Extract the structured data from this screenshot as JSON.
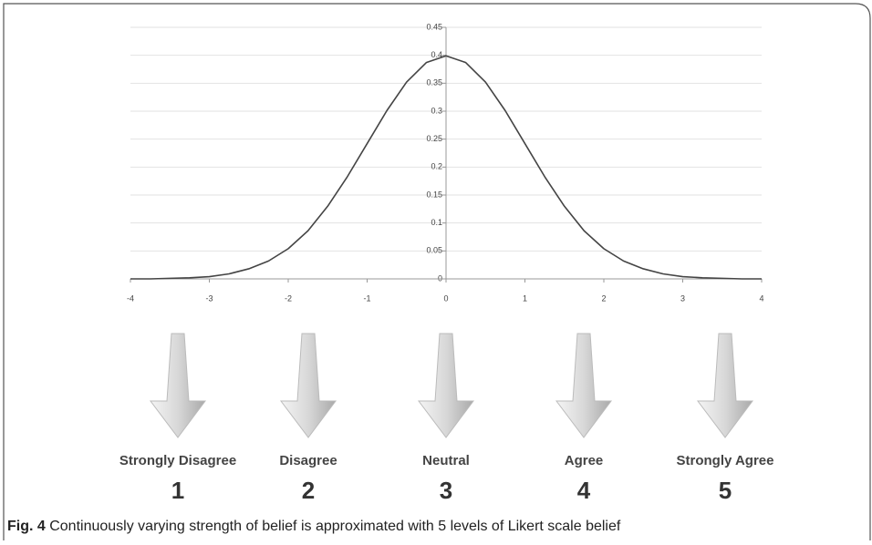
{
  "chart_data": {
    "type": "line",
    "x": [
      -4,
      -3.75,
      -3.5,
      -3.25,
      -3,
      -2.75,
      -2.5,
      -2.25,
      -2,
      -1.75,
      -1.5,
      -1.25,
      -1,
      -0.75,
      -0.5,
      -0.25,
      0,
      0.25,
      0.5,
      0.75,
      1,
      1.25,
      1.5,
      1.75,
      2,
      2.25,
      2.5,
      2.75,
      3,
      3.25,
      3.5,
      3.75,
      4
    ],
    "series": [
      {
        "name": null,
        "color": "#444444",
        "values": [
          0.0,
          0.0,
          0.001,
          0.002,
          0.004,
          0.009,
          0.018,
          0.032,
          0.054,
          0.086,
          0.13,
          0.183,
          0.242,
          0.301,
          0.352,
          0.387,
          0.399,
          0.387,
          0.352,
          0.301,
          0.242,
          0.183,
          0.13,
          0.086,
          0.054,
          0.032,
          0.018,
          0.009,
          0.004,
          0.002,
          0.001,
          0.0,
          0.0
        ]
      }
    ],
    "xlim": [
      -4,
      4
    ],
    "xticks": [
      -4,
      -3,
      -2,
      -1,
      0,
      1,
      2,
      3,
      4
    ],
    "ylim": [
      0,
      0.45
    ],
    "yticks": [
      0,
      0.05,
      0.1,
      0.15,
      0.2,
      0.25,
      0.3,
      0.35,
      0.4,
      0.45
    ],
    "grid": true
  },
  "likert": [
    {
      "label": "Strongly Disagree",
      "level": 1
    },
    {
      "label": "Disagree",
      "level": 2
    },
    {
      "label": "Neutral",
      "level": 3
    },
    {
      "label": "Agree",
      "level": 4
    },
    {
      "label": "Strongly Agree",
      "level": 5
    }
  ],
  "caption": {
    "label": "Fig. 4",
    "text": " Continuously varying strength of belief is approximated with 5 levels of Likert scale belief"
  }
}
